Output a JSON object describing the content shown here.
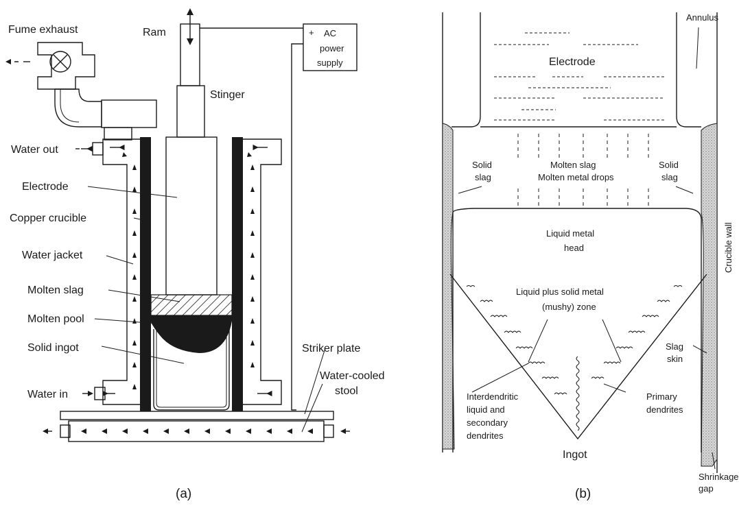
{
  "panel_a": {
    "caption": "(a)",
    "labels": {
      "fume_exhaust": "Fume exhaust",
      "ram": "Ram",
      "ac_power_1": "AC",
      "ac_power_2": "power",
      "ac_power_3": "supply",
      "plus": "+",
      "stinger": "Stinger",
      "water_out": "Water out",
      "electrode": "Electrode",
      "copper_crucible": "Copper crucible",
      "water_jacket": "Water jacket",
      "molten_slag": "Molten slag",
      "molten_pool": "Molten pool",
      "solid_ingot": "Solid ingot",
      "striker_plate": "Striker plate",
      "water_cooled_1": "Water-cooled",
      "water_cooled_2": "stool",
      "water_in": "Water in"
    }
  },
  "panel_b": {
    "caption": "(b)",
    "labels": {
      "annulus": "Annulus",
      "electrode": "Electrode",
      "solid_slag_left_1": "Solid",
      "solid_slag_left_2": "slag",
      "molten_slag": "Molten slag",
      "molten_metal_drops": "Molten metal drops",
      "solid_slag_right_1": "Solid",
      "solid_slag_right_2": "slag",
      "crucible_wall": "Crucible wall",
      "liquid_metal_1": "Liquid metal",
      "liquid_metal_2": "head",
      "mushy_1": "Liquid plus solid metal",
      "mushy_2": "(mushy) zone",
      "slag_skin_1": "Slag",
      "slag_skin_2": "skin",
      "interdendritic_1": "Interdendritic",
      "interdendritic_2": "liquid and",
      "interdendritic_3": "secondary",
      "interdendritic_4": "dendrites",
      "primary_1": "Primary",
      "primary_2": "dendrites",
      "ingot": "Ingot",
      "shrinkage_1": "Shrinkage",
      "shrinkage_2": "gap"
    }
  }
}
